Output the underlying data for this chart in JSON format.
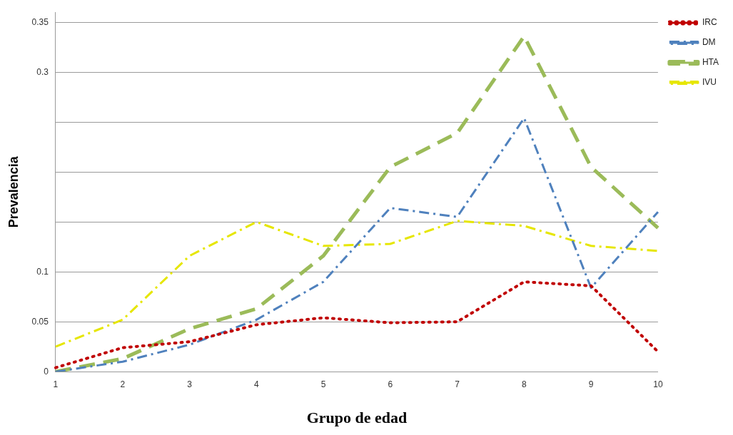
{
  "chart_data": {
    "type": "line",
    "xlabel": "Grupo de edad",
    "ylabel": "Prevalencia",
    "categories": [
      "1",
      "2",
      "3",
      "4",
      "5",
      "6",
      "7",
      "8",
      "9",
      "10"
    ],
    "series": [
      {
        "name": "IRC",
        "color": "#c00000",
        "line_style": "dotted",
        "values": [
          0.004,
          0.024,
          0.03,
          0.047,
          0.054,
          0.049,
          0.05,
          0.09,
          0.086,
          0.02
        ]
      },
      {
        "name": "DM",
        "color": "#4f81bd",
        "line_style": "dashdot",
        "values": [
          0,
          0.01,
          0.027,
          0.052,
          0.09,
          0.164,
          0.155,
          0.254,
          0.084,
          0.16
        ]
      },
      {
        "name": "HTA",
        "color": "#9bbb59",
        "line_style": "dashed",
        "values": [
          0,
          0.013,
          0.043,
          0.063,
          0.116,
          0.205,
          0.239,
          0.336,
          0.205,
          0.144
        ]
      },
      {
        "name": "IVU",
        "color": "#e6e600",
        "line_style": "dashdot",
        "values": [
          0.025,
          0.052,
          0.116,
          0.15,
          0.126,
          0.128,
          0.151,
          0.146,
          0.126,
          0.121
        ]
      }
    ],
    "ylim": [
      0,
      0.36
    ],
    "yticks": [
      0,
      0.05,
      0.1,
      {
        "value": 0.15,
        "label": null
      },
      {
        "value": 0.2,
        "label": null
      },
      {
        "value": 0.25,
        "label": null
      },
      0.3,
      0.35
    ],
    "grid": "y",
    "legend": "top right",
    "marker": "none"
  }
}
